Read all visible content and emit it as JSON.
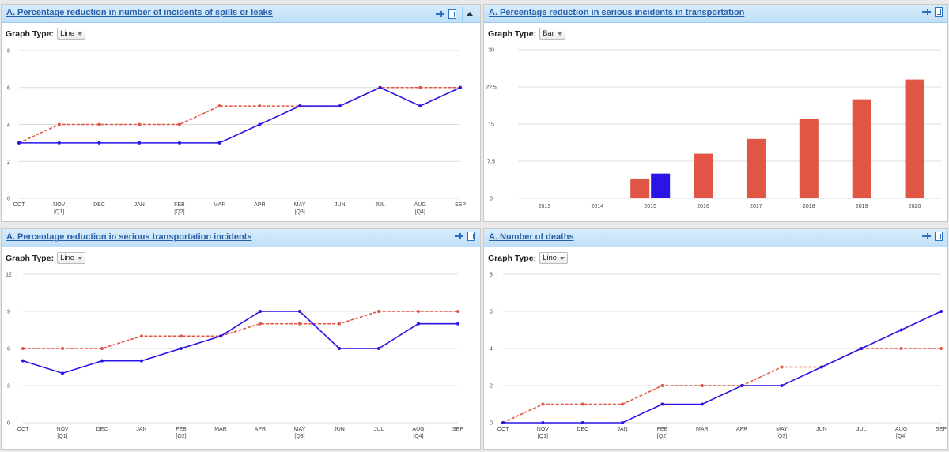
{
  "graph_type_label": "Graph Type:",
  "colors": {
    "actual": "#2a14e6",
    "target": "#e05543"
  },
  "panels": [
    {
      "title": "A. Percentage reduction in number of incidents of spills or leaks",
      "graph_type": "Line",
      "collapse_icon": true,
      "chart_data": {
        "type": "line",
        "categories": [
          "OCT",
          "NOV",
          "DEC",
          "JAN",
          "FEB",
          "MAR",
          "APR",
          "MAY",
          "JUN",
          "JUL",
          "AUG",
          "SEP"
        ],
        "sub_labels": [
          "",
          "[Q1]",
          "",
          "",
          "[Q2]",
          "",
          "",
          "[Q3]",
          "",
          "",
          "[Q4]",
          ""
        ],
        "ylim": [
          0,
          8
        ],
        "yticks": [
          0,
          2,
          4,
          6,
          8
        ],
        "series": [
          {
            "style": "solid",
            "values": [
              3,
              3,
              3,
              3,
              3,
              3,
              4,
              5,
              5,
              6,
              5,
              6
            ]
          },
          {
            "style": "dashed",
            "values": [
              3,
              4,
              4,
              4,
              4,
              5,
              5,
              5,
              5,
              6,
              6,
              6
            ]
          }
        ]
      }
    },
    {
      "title": "A. Percentage reduction in serious incidents in transportation",
      "graph_type": "Bar",
      "collapse_icon": false,
      "chart_data": {
        "type": "bar",
        "categories": [
          "2013",
          "2014",
          "2015",
          "2016",
          "2017",
          "2018",
          "2019",
          "2020"
        ],
        "ylim": [
          0,
          30
        ],
        "yticks": [
          "0",
          "7.5",
          "15",
          "22.5",
          "30"
        ],
        "series": [
          {
            "style": "target",
            "values": [
              null,
              null,
              4,
              9,
              12,
              16,
              20,
              24
            ]
          },
          {
            "style": "actual",
            "values": [
              null,
              null,
              5,
              null,
              null,
              null,
              null,
              null
            ]
          }
        ]
      }
    },
    {
      "title": "A. Percentage reduction in serious transportation incidents",
      "graph_type": "Line",
      "collapse_icon": false,
      "chart_data": {
        "type": "line",
        "categories": [
          "OCT",
          "NOV",
          "DEC",
          "JAN",
          "FEB",
          "MAR",
          "APR",
          "MAY",
          "JUN",
          "JUL",
          "AUG",
          "SEP"
        ],
        "sub_labels": [
          "",
          "[Q1]",
          "",
          "",
          "[Q2]",
          "",
          "",
          "[Q3]",
          "",
          "",
          "[Q4]",
          ""
        ],
        "ylim": [
          0,
          12
        ],
        "yticks": [
          0,
          3,
          6,
          9,
          12
        ],
        "series": [
          {
            "style": "solid",
            "values": [
              5,
              4,
              5,
              5,
              6,
              7,
              9,
              9,
              6,
              6,
              8,
              8
            ]
          },
          {
            "style": "dashed",
            "values": [
              6,
              6,
              6,
              7,
              7,
              7,
              8,
              8,
              8,
              9,
              9,
              9
            ]
          }
        ]
      }
    },
    {
      "title": "A. Number of deaths",
      "graph_type": "Line",
      "collapse_icon": false,
      "chart_data": {
        "type": "line",
        "categories": [
          "OCT",
          "NOV",
          "DEC",
          "JAN",
          "FEB",
          "MAR",
          "APR",
          "MAY",
          "JUN",
          "JUL",
          "AUG",
          "SEP"
        ],
        "sub_labels": [
          "",
          "[Q1]",
          "",
          "",
          "[Q2]",
          "",
          "",
          "[Q3]",
          "",
          "",
          "[Q4]",
          ""
        ],
        "ylim": [
          0,
          8
        ],
        "yticks": [
          0,
          2,
          4,
          6,
          8
        ],
        "series": [
          {
            "style": "solid",
            "values": [
              0,
              0,
              0,
              0,
              1,
              1,
              2,
              2,
              3,
              4,
              5,
              6
            ]
          },
          {
            "style": "dashed",
            "values": [
              0,
              1,
              1,
              1,
              2,
              2,
              2,
              3,
              3,
              4,
              4,
              4
            ]
          }
        ]
      }
    }
  ]
}
